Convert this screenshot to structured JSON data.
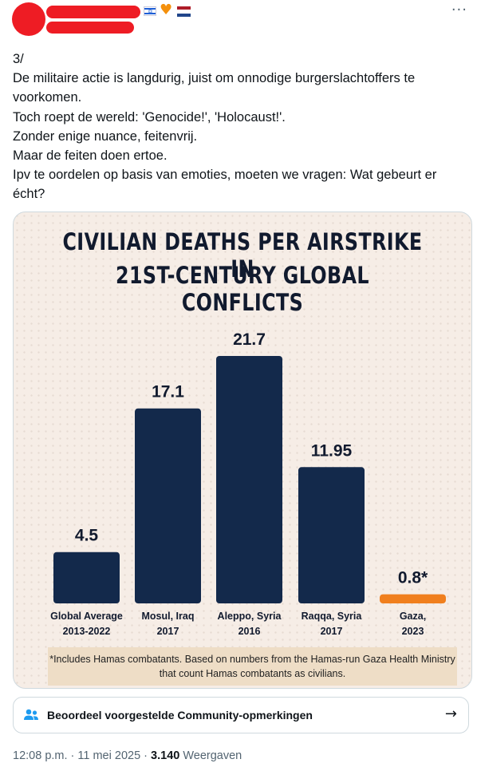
{
  "header": {
    "heart_glyph": "♥",
    "more_glyph": "···",
    "flag_il_glyph": "✡"
  },
  "tweet": {
    "lines": [
      "3/",
      "De militaire actie is langdurig, juist om onnodige burgerslachtoffers te voorkomen.",
      "Toch roept de wereld: 'Genocide!', 'Holocaust!'.",
      "Zonder enige nuance, feitenvrij.",
      "Maar de feiten doen ertoe.",
      "Ipv te oordelen op basis van emoties, moeten we vragen: Wat gebeurt er écht?"
    ]
  },
  "chart_data": {
    "type": "bar",
    "title_line1": "CIVILIAN DEATHS PER AIRSTRIKE IN",
    "title_line2": "21ST-CENTURY GLOBAL CONFLICTS",
    "categories": [
      [
        "Global Average",
        "2013-2022"
      ],
      [
        "Mosul, Iraq",
        "2017"
      ],
      [
        "Aleppo, Syria",
        "2016"
      ],
      [
        "Raqqa, Syria",
        "2017"
      ],
      [
        "Gaza,",
        "2023"
      ]
    ],
    "values": [
      4.5,
      17.1,
      21.7,
      11.95,
      0.8
    ],
    "value_labels": [
      "4.5",
      "17.1",
      "21.7",
      "11.95",
      "0.8*"
    ],
    "colors": [
      "#13294b",
      "#13294b",
      "#13294b",
      "#13294b",
      "#f07f1e"
    ],
    "ylim": [
      0,
      21.7
    ],
    "note": "*Includes Hamas combatants. Based on numbers from the Hamas-run Gaza Health Ministry that count Hamas combatants as civilians."
  },
  "community_notes": {
    "label": "Beoordeel voorgestelde Community-opmerkingen",
    "arrow": "→"
  },
  "meta": {
    "time": "12:08 p.m. · 11 mei 2025 · ",
    "views_count": "3.140",
    "views_label": " Weergaven"
  }
}
